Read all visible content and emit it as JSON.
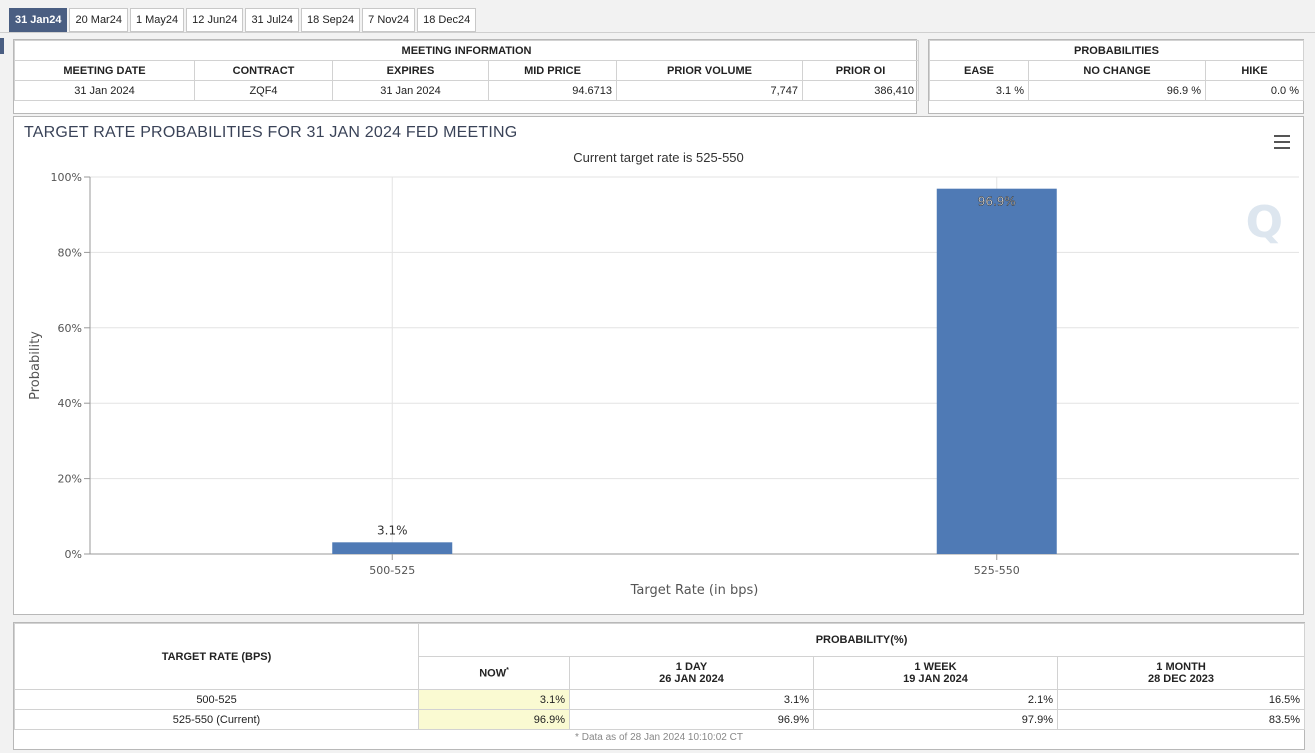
{
  "tabs": [
    "31 Jan24",
    "20 Mar24",
    "1 May24",
    "12 Jun24",
    "31 Jul24",
    "18 Sep24",
    "7 Nov24",
    "18 Dec24"
  ],
  "meeting_info": {
    "section_title": "MEETING INFORMATION",
    "headers": [
      "MEETING DATE",
      "CONTRACT",
      "EXPIRES",
      "MID PRICE",
      "PRIOR VOLUME",
      "PRIOR OI"
    ],
    "row": [
      "31 Jan 2024",
      "ZQF4",
      "31 Jan 2024",
      "94.6713",
      "7,747",
      "386,410"
    ]
  },
  "probabilities": {
    "section_title": "PROBABILITIES",
    "headers": [
      "EASE",
      "NO CHANGE",
      "HIKE"
    ],
    "row": [
      "3.1 %",
      "96.9 %",
      "0.0 %"
    ]
  },
  "chart": {
    "watermark": "Q"
  },
  "chart_data": {
    "type": "bar",
    "title": "TARGET RATE PROBABILITIES FOR 31 JAN 2024 FED MEETING",
    "subtitle": "Current target rate is 525-550",
    "xlabel": "Target Rate (in bps)",
    "ylabel": "Probability",
    "categories": [
      "500-525",
      "525-550"
    ],
    "values": [
      3.1,
      96.9
    ],
    "data_labels": [
      "3.1%",
      "96.9%"
    ],
    "ylim": [
      0,
      100
    ],
    "yticks": [
      "0%",
      "20%",
      "40%",
      "60%",
      "80%",
      "100%"
    ],
    "bar_color": "#4f7ab5",
    "grid": true
  },
  "history": {
    "left_header": "TARGET RATE (BPS)",
    "group_header": "PROBABILITY(%)",
    "now_label": "NOW",
    "now_marker": "*",
    "cols": [
      {
        "line1": "1 DAY",
        "line2": "26 JAN 2024"
      },
      {
        "line1": "1 WEEK",
        "line2": "19 JAN 2024"
      },
      {
        "line1": "1 MONTH",
        "line2": "28 DEC 2023"
      }
    ],
    "rows": [
      {
        "rate": "500-525",
        "now": "3.1%",
        "vals": [
          "3.1%",
          "2.1%",
          "16.5%"
        ]
      },
      {
        "rate": "525-550 (Current)",
        "now": "96.9%",
        "vals": [
          "96.9%",
          "97.9%",
          "83.5%"
        ]
      }
    ],
    "footnote": "* Data as of 28 Jan 2024 10:10:02 CT"
  }
}
